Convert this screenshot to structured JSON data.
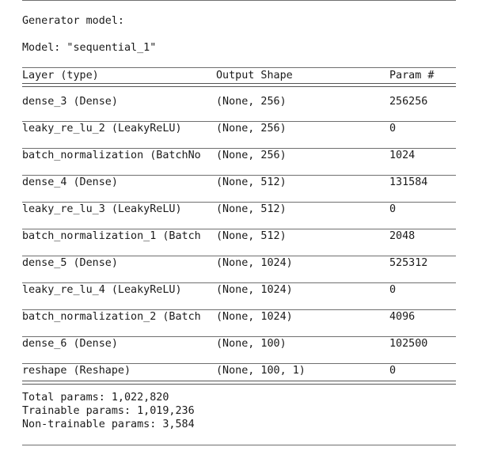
{
  "heading": "Generator model:",
  "model_line": "Model: \"sequential_1\"",
  "table": {
    "headers": [
      "Layer (type)",
      "Output Shape",
      "Param #"
    ],
    "rows": [
      [
        "dense_3 (Dense)",
        "(None, 256)",
        "256256"
      ],
      [
        "leaky_re_lu_2 (LeakyReLU)",
        "(None, 256)",
        "0"
      ],
      [
        "batch_normalization (BatchNo",
        "(None, 256)",
        "1024"
      ],
      [
        "dense_4 (Dense)",
        "(None, 512)",
        "131584"
      ],
      [
        "leaky_re_lu_3 (LeakyReLU)",
        "(None, 512)",
        "0"
      ],
      [
        "batch_normalization_1 (Batch",
        "(None, 512)",
        "2048"
      ],
      [
        "dense_5 (Dense)",
        "(None, 1024)",
        "525312"
      ],
      [
        "leaky_re_lu_4 (LeakyReLU)",
        "(None, 1024)",
        "0"
      ],
      [
        "batch_normalization_2 (Batch",
        "(None, 1024)",
        "4096"
      ],
      [
        "dense_6 (Dense)",
        "(None, 100)",
        "102500"
      ],
      [
        "reshape (Reshape)",
        "(None, 100, 1)",
        "0"
      ]
    ]
  },
  "summary": {
    "total": "Total params: 1,022,820",
    "trainable": "Trainable params: 1,019,236",
    "non_trainable": "Non-trainable params: 3,584"
  }
}
